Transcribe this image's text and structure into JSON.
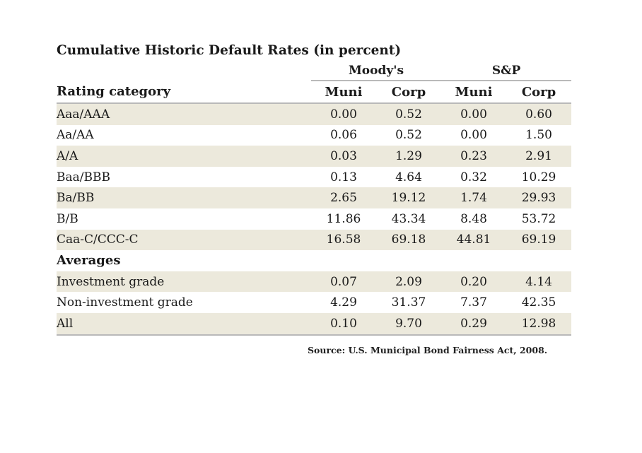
{
  "chart_data": {
    "type": "table",
    "title": "Cumulative Historic Default Rates (in percent)",
    "column_groups": [
      "Moody's",
      "S&P"
    ],
    "columns": [
      "Rating category",
      "Muni",
      "Corp",
      "Muni",
      "Corp"
    ],
    "rows": [
      {
        "label": "Aaa/AAA",
        "values": [
          "0.00",
          "0.52",
          "0.00",
          "0.60"
        ]
      },
      {
        "label": "Aa/AA",
        "values": [
          "0.06",
          "0.52",
          "0.00",
          "1.50"
        ]
      },
      {
        "label": "A/A",
        "values": [
          "0.03",
          "1.29",
          "0.23",
          "2.91"
        ]
      },
      {
        "label": "Baa/BBB",
        "values": [
          "0.13",
          "4.64",
          "0.32",
          "10.29"
        ]
      },
      {
        "label": "Ba/BB",
        "values": [
          "2.65",
          "19.12",
          "1.74",
          "29.93"
        ]
      },
      {
        "label": "B/B",
        "values": [
          "11.86",
          "43.34",
          "8.48",
          "53.72"
        ]
      },
      {
        "label": "Caa-C/CCC-C",
        "values": [
          "16.58",
          "69.18",
          "44.81",
          "69.19"
        ]
      }
    ],
    "averages_heading": "Averages",
    "averages": [
      {
        "label": "Investment grade",
        "values": [
          "0.07",
          "2.09",
          "0.20",
          "4.14"
        ]
      },
      {
        "label": "Non-investment grade",
        "values": [
          "4.29",
          "31.37",
          "7.37",
          "42.35"
        ]
      },
      {
        "label": "All",
        "values": [
          "0.10",
          "9.70",
          "0.29",
          "12.98"
        ]
      }
    ],
    "source": "Source: U.S. Municipal Bond Fairness Act, 2008."
  }
}
